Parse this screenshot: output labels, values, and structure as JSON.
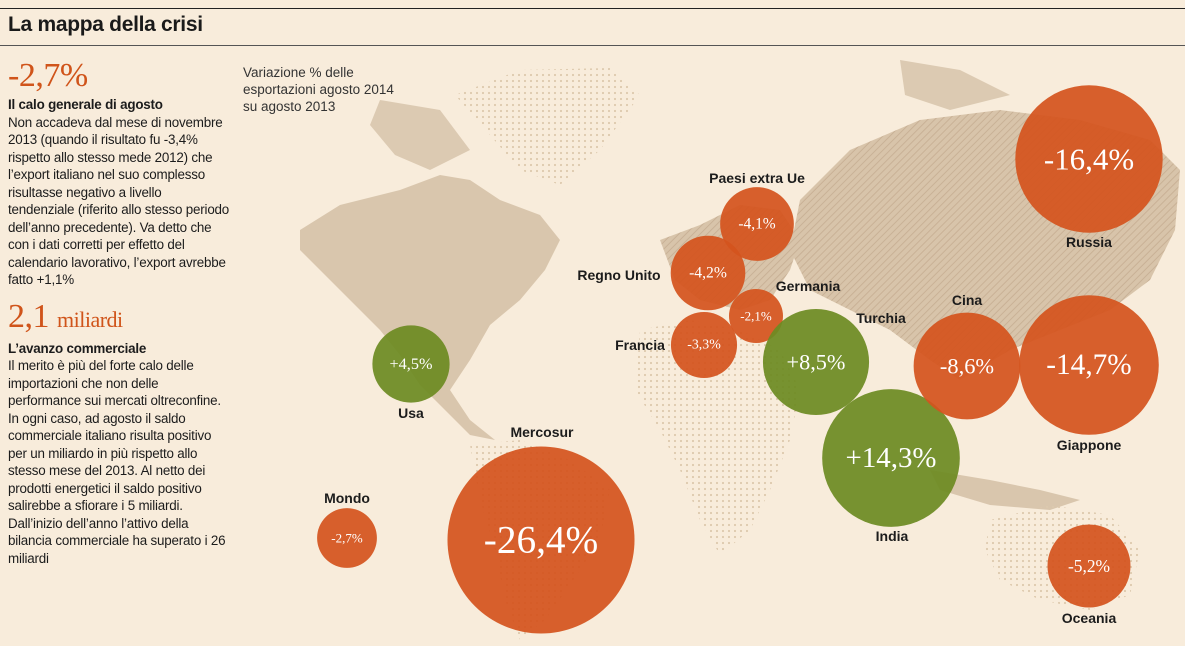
{
  "header": {
    "title": "La mappa della crisi"
  },
  "sidebar": {
    "stat1": {
      "value": "-2,7%",
      "heading": "Il calo generale di agosto",
      "body": "Non accadeva dal mese di novembre 2013 (quando il risultato fu -3,4% rispetto allo stesso mede 2012) che l’export italiano nel suo complesso risultasse negativo a livello tendenziale (riferito allo stesso periodo dell’anno precedente). Va detto che con i dati corretti per effetto del calendario lavorativo, l’export avrebbe fatto +1,1%"
    },
    "stat2": {
      "value": "2,1",
      "unit": "miliardi",
      "heading": "L’avanzo commerciale",
      "body": "Il merito è più del forte calo delle importazioni che non delle performance sui mercati oltreconfine. In ogni caso, ad agosto il saldo commerciale italiano risulta positivo per un miliardo in più rispetto allo stesso mese del 2013. Al netto dei prodotti energetici il saldo positivo salirebbe a sfiorare i 5 miliardi. Dall’inizio dell’anno l’attivo della bilancia commerciale ha superato i 26 miliardi"
    }
  },
  "legend": {
    "text": "Variazione % delle esportazioni agosto 2014 su agosto 2013"
  },
  "colors": {
    "negative": "#d4541e",
    "positive": "#6d8b22",
    "land": "#d9c6ad",
    "accent": "#d0541a"
  },
  "chart_data": {
    "type": "bubble-map",
    "title": "La mappa della crisi",
    "subtitle": "Variazione % delle esportazioni agosto 2014 su agosto 2013",
    "unit": "%",
    "points": [
      {
        "region": "Mondo",
        "value": -2.7,
        "label": "-2,7%"
      },
      {
        "region": "Usa",
        "value": 4.5,
        "label": "+4,5%"
      },
      {
        "region": "Mercosur",
        "value": -26.4,
        "label": "-26,4%"
      },
      {
        "region": "Paesi extra Ue",
        "value": -4.1,
        "label": "-4,1%"
      },
      {
        "region": "Regno Unito",
        "value": -4.2,
        "label": "-4,2%"
      },
      {
        "region": "Germania",
        "value": -2.1,
        "label": "-2,1%"
      },
      {
        "region": "Francia",
        "value": -3.3,
        "label": "-3,3%"
      },
      {
        "region": "Turchia",
        "value": 8.5,
        "label": "+8,5%"
      },
      {
        "region": "India",
        "value": 14.3,
        "label": "+14,3%"
      },
      {
        "region": "Cina",
        "value": -8.6,
        "label": "-8,6%"
      },
      {
        "region": "Giappone",
        "value": -14.7,
        "label": "-14,7%"
      },
      {
        "region": "Russia",
        "value": -16.4,
        "label": "-16,4%"
      },
      {
        "region": "Oceania",
        "value": -5.2,
        "label": "-5,2%"
      }
    ]
  }
}
